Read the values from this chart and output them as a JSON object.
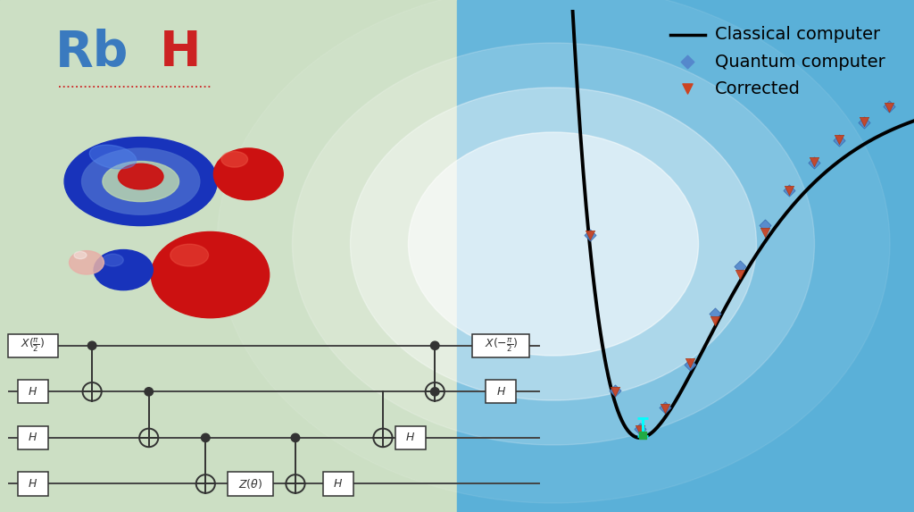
{
  "bg_left_color": "#ccdfc4",
  "bg_right_color": "#5ab0d8",
  "title_rb_color": "#3a7abf",
  "title_h_color": "#cc2222",
  "curve_color": "#000000",
  "quantum_color": "#5588cc",
  "corrected_color": "#cc4422",
  "legend_line_color": "#000000",
  "circuit_color": "#333333",
  "wire_color": "#444444",
  "gate_bg": "#ffffff",
  "rbh_fontsize": 40,
  "legend_fontsize": 14,
  "circuit_fontsize": 9
}
